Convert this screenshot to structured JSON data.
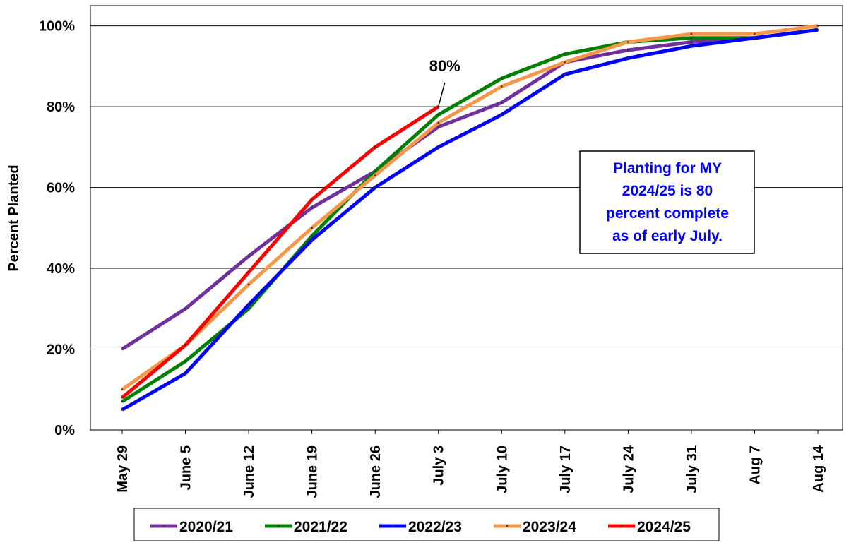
{
  "chart_data": {
    "type": "line",
    "y_label": "Percent Planted",
    "categories": [
      "May 29",
      "June 5",
      "June 12",
      "June 19",
      "June 26",
      "July 3",
      "July 10",
      "July 17",
      "July 24",
      "July 31",
      "Aug 7",
      "Aug 14"
    ],
    "series": [
      {
        "name": "2020/21",
        "color": "#7030a0",
        "values": [
          20,
          30,
          43,
          55,
          64,
          75,
          81,
          91,
          94,
          96,
          97,
          99
        ]
      },
      {
        "name": "2021/22",
        "color": "#008000",
        "values": [
          7,
          17,
          30,
          48,
          64,
          78,
          87,
          93,
          96,
          97,
          97,
          99
        ]
      },
      {
        "name": "2022/23",
        "color": "#0000ff",
        "values": [
          5,
          14,
          31,
          47,
          60,
          70,
          78,
          88,
          92,
          95,
          97,
          99
        ]
      },
      {
        "name": "2023/24",
        "color": "#f79646",
        "values": [
          10,
          21,
          36,
          50,
          63,
          76,
          85,
          91,
          96,
          98,
          98,
          100
        ]
      },
      {
        "name": "2024/25",
        "color": "#ff0000",
        "values": [
          8,
          21,
          39,
          57,
          70,
          80,
          null,
          null,
          null,
          null,
          null,
          null
        ]
      }
    ],
    "ylim": [
      0,
      105
    ],
    "yticks": [
      {
        "value": 0,
        "label": "0%"
      },
      {
        "value": 20,
        "label": "20%"
      },
      {
        "value": 40,
        "label": "40%"
      },
      {
        "value": 60,
        "label": "60%"
      },
      {
        "value": 80,
        "label": "80%"
      },
      {
        "value": 100,
        "label": "100%"
      }
    ],
    "grid": true,
    "legend": "bottom",
    "annotation": "80%",
    "note_lines": [
      "Planting for MY",
      "2024/25 is 80",
      "percent complete",
      "as of early July."
    ]
  }
}
